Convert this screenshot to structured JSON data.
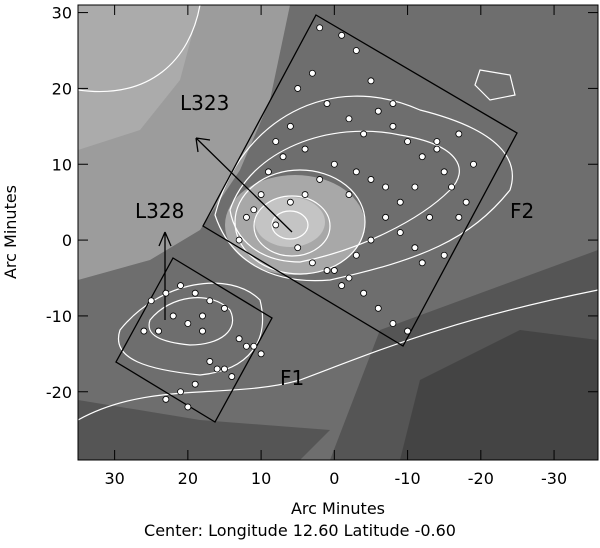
{
  "chart_data": {
    "type": "scatter",
    "x_label": "Arc Minutes",
    "y_label": "Arc Minutes",
    "footer": "Center:  Longitude 12.60 Latitude -0.60",
    "annotations": [
      "L323",
      "L328",
      "F1",
      "F2"
    ],
    "xlim": [
      35,
      -36
    ],
    "ylim": [
      -29,
      31
    ],
    "xticks": [
      30,
      20,
      10,
      0,
      -10,
      -20,
      -30
    ],
    "yticks": [
      30,
      20,
      10,
      0,
      -10,
      -20
    ],
    "color": "#ffffff",
    "x": [
      2,
      -1,
      -3,
      3,
      5,
      -5,
      1,
      -2,
      6,
      8,
      4,
      -4,
      -6,
      -8,
      0,
      2,
      -2,
      7,
      9,
      10,
      11,
      -10,
      -12,
      -14,
      -15,
      -11,
      -9,
      -7,
      -5,
      -3,
      0,
      3,
      5,
      8,
      12,
      13,
      -1,
      -4,
      -6,
      -13,
      -16,
      -18,
      -17,
      -17,
      -19,
      -8,
      -10,
      -2,
      1,
      4,
      6,
      -3,
      -5,
      -7,
      -9,
      -11,
      -12,
      -15,
      -14,
      -8,
      25,
      23,
      21,
      19,
      17,
      15,
      22,
      20,
      18,
      24,
      26,
      13,
      11,
      10,
      16,
      14,
      19,
      21,
      23,
      17,
      15,
      12,
      20,
      18
    ],
    "values": [
      28,
      27,
      25,
      22,
      20,
      21,
      18,
      16,
      15,
      13,
      12,
      14,
      17,
      18,
      10,
      8,
      6,
      11,
      9,
      6,
      4,
      13,
      11,
      12,
      9,
      7,
      5,
      3,
      0,
      -2,
      -4,
      -3,
      -1,
      2,
      3,
      0,
      -6,
      -7,
      -9,
      3,
      7,
      5,
      3,
      14,
      10,
      -11,
      -12,
      -5,
      -4,
      6,
      5,
      9,
      8,
      7,
      1,
      -1,
      -3,
      -2,
      13,
      15,
      -8,
      -7,
      -6,
      -7,
      -8,
      -9,
      -10,
      -11,
      -10,
      -12,
      -12,
      -13,
      -14,
      -15,
      -17,
      -18,
      -19,
      -20,
      -21,
      -16,
      -17,
      -14,
      -22,
      -12
    ]
  }
}
